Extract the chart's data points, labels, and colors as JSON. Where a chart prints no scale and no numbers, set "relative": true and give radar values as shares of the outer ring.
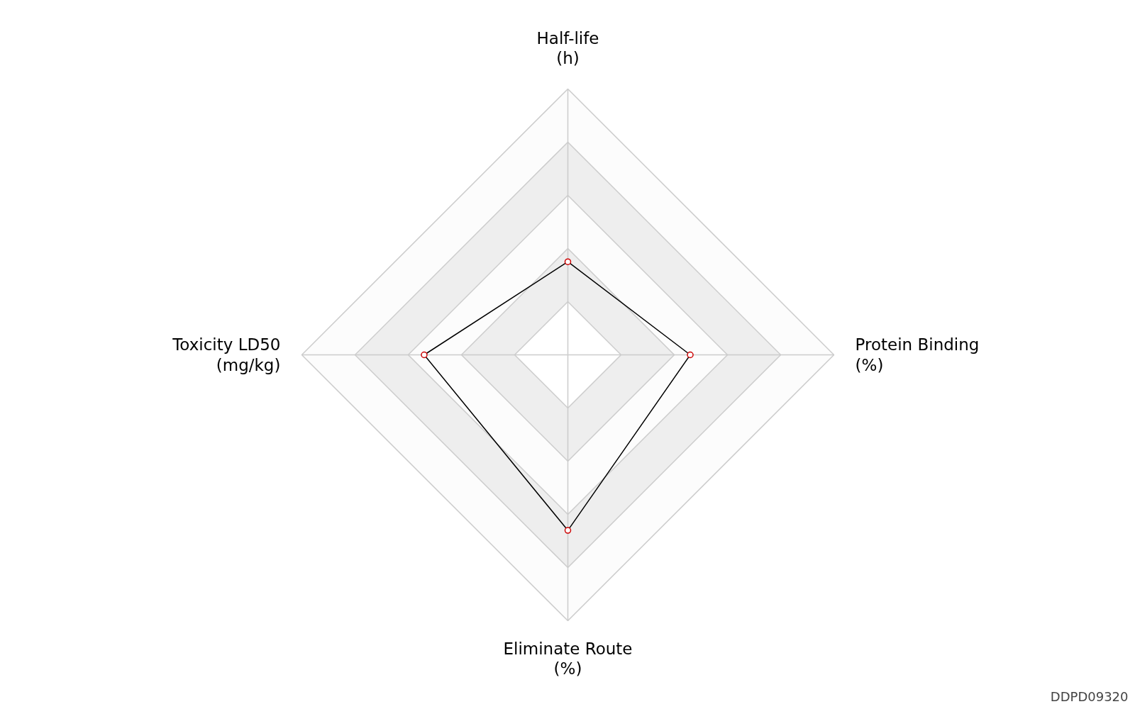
{
  "chart_data": {
    "type": "radar",
    "relative": true,
    "grid": true,
    "marker": "circle",
    "categories": [
      "Half-life\n(h)",
      "Protein Binding\n(%)",
      "Eliminate Route\n(%)",
      "Toxicity LD50\n(mg/kg)"
    ],
    "series": [
      {
        "color": "#000000",
        "values": [
          0.35,
          0.46,
          0.66,
          0.54
        ]
      }
    ],
    "annotations": [
      "DDPD09320"
    ]
  }
}
